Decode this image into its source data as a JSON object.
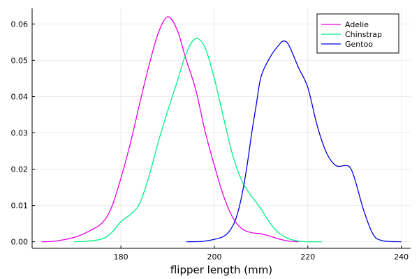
{
  "chart_data": {
    "type": "line",
    "title": "",
    "xlabel": "flipper length (mm)",
    "ylabel": "",
    "xlim": [
      161,
      242
    ],
    "ylim": [
      -0.0018,
      0.0643
    ],
    "xticks": [
      180,
      200,
      220,
      240
    ],
    "yticks": [
      0.0,
      0.01,
      0.02,
      0.03,
      0.04,
      0.05,
      0.06
    ],
    "ytick_labels": [
      "0.00",
      "0.01",
      "0.02",
      "0.03",
      "0.04",
      "0.05",
      "0.06"
    ],
    "grid": true,
    "legend": "top-right",
    "series": [
      {
        "name": "Adelie",
        "color": "#e500e5",
        "x": [
          163,
          166,
          170,
          173,
          176,
          178,
          180,
          182,
          184,
          186,
          188,
          190,
          192,
          194,
          196,
          198,
          200,
          202,
          204,
          206,
          208,
          210,
          212,
          214,
          216,
          218
        ],
        "y": [
          0.0,
          0.0002,
          0.0012,
          0.0028,
          0.0052,
          0.0095,
          0.0175,
          0.027,
          0.038,
          0.0485,
          0.0575,
          0.062,
          0.0585,
          0.05,
          0.042,
          0.0305,
          0.021,
          0.0125,
          0.0065,
          0.0035,
          0.0025,
          0.0022,
          0.0015,
          0.0007,
          0.0002,
          0.0
        ]
      },
      {
        "name": "Chinstrap",
        "color": "#00ee88",
        "x": [
          170,
          173,
          176,
          178,
          180,
          182,
          184,
          186,
          188,
          190,
          192,
          194,
          196,
          198,
          200,
          202,
          204,
          206,
          208,
          210,
          212,
          214,
          216,
          218,
          220,
          223
        ],
        "y": [
          0.0,
          0.0002,
          0.0008,
          0.0025,
          0.0055,
          0.0075,
          0.0105,
          0.018,
          0.0275,
          0.036,
          0.044,
          0.052,
          0.056,
          0.0535,
          0.045,
          0.034,
          0.0235,
          0.0165,
          0.0125,
          0.009,
          0.005,
          0.0022,
          0.0008,
          0.0002,
          0.0,
          0.0
        ]
      },
      {
        "name": "Gentoo",
        "color": "#0000dd",
        "x": [
          194,
          198,
          202,
          204,
          205,
          206,
          207,
          208,
          209,
          210,
          212,
          214,
          215,
          216,
          218,
          220,
          222,
          224,
          226,
          228,
          229,
          230,
          232,
          234,
          236,
          240
        ],
        "y": [
          0.0,
          0.0002,
          0.0015,
          0.0045,
          0.008,
          0.0135,
          0.021,
          0.03,
          0.038,
          0.0455,
          0.051,
          0.0545,
          0.0553,
          0.054,
          0.048,
          0.0425,
          0.032,
          0.0245,
          0.021,
          0.021,
          0.0205,
          0.0175,
          0.0085,
          0.002,
          0.0003,
          0.0
        ]
      }
    ]
  }
}
